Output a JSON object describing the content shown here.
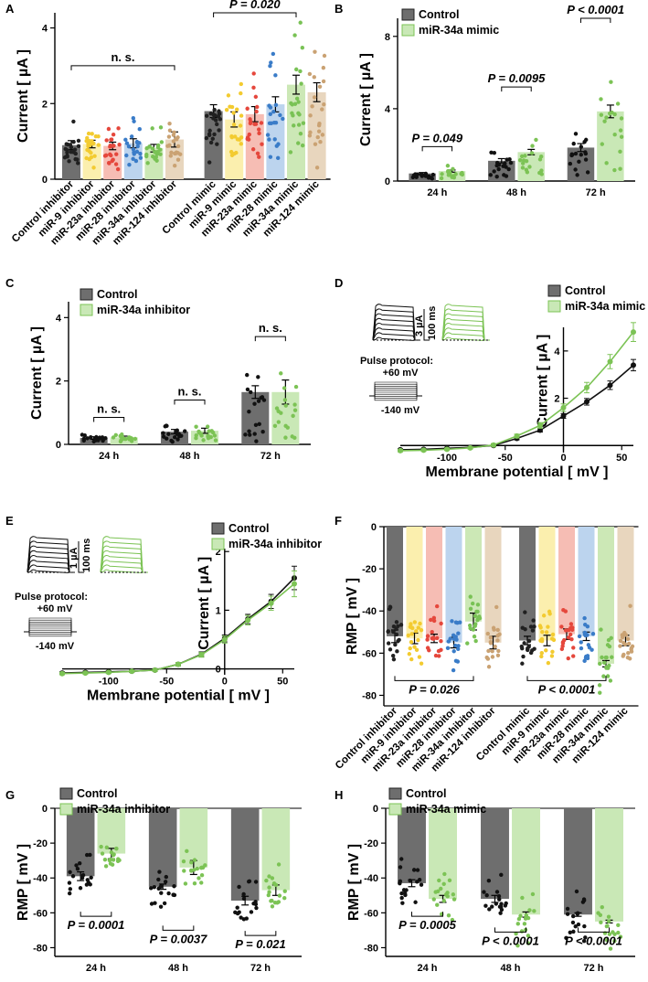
{
  "colors": {
    "control": "#444444",
    "control_bar": "#6e6e6e",
    "green": "#7cc355",
    "green_bar": "#c9e8b6",
    "inhibitor_palette": [
      "#202020",
      "#f3cb30",
      "#e5473c",
      "#3a7cc8",
      "#79c255",
      "#caa273"
    ],
    "inhibitor_bar_palette": [
      "#6f6f6f",
      "#fbefae",
      "#f6bdb4",
      "#bcd4ee",
      "#cce8b6",
      "#e8d6be"
    ]
  },
  "chart_data": [
    {
      "panel": "A",
      "type": "bar",
      "ylabel": "Current [ µA ]",
      "ylim": [
        0,
        4.4
      ],
      "yticks": [
        0,
        2,
        4
      ],
      "categories": [
        "Control inhibitor",
        "miR-9 inhibitor",
        "miR-23a inhibitor",
        "miR-28 inhibitor",
        "miR-34a inhibitor",
        "miR-124 inhibitor",
        "Control mimic",
        "miR-9 mimic",
        "miR-23a mimic",
        "miR-28 mimic",
        "miR-34a mimic",
        "miR-124 mimic"
      ],
      "values": [
        0.9,
        0.93,
        0.88,
        0.95,
        0.82,
        1.05,
        1.8,
        1.58,
        1.72,
        1.98,
        2.5,
        2.3
      ],
      "errors": [
        0.12,
        0.1,
        0.1,
        0.12,
        0.1,
        0.2,
        0.17,
        0.2,
        0.2,
        0.2,
        0.25,
        0.25
      ],
      "annotations": [
        {
          "text": "n. s.",
          "from": 0,
          "to": 5,
          "y": 3.0
        },
        {
          "text": "P = 0.020",
          "from": 6,
          "to": 10,
          "y": 4.4
        }
      ]
    },
    {
      "panel": "B",
      "type": "bar",
      "ylabel": "Current [ µA ]",
      "ylim": [
        0,
        9
      ],
      "yticks": [
        0,
        4,
        8
      ],
      "categories": [
        "24 h",
        "48 h",
        "72 h"
      ],
      "series": [
        {
          "name": "Control",
          "values": [
            0.42,
            1.12,
            1.85
          ],
          "errors": [
            0.05,
            0.12,
            0.22
          ]
        },
        {
          "name": "miR-34a mimic",
          "values": [
            0.55,
            1.6,
            3.85
          ],
          "errors": [
            0.06,
            0.15,
            0.35
          ]
        }
      ],
      "annotations": [
        "P = 0.049",
        "P = 0.0095",
        "P < 0.0001"
      ],
      "annotation_y": [
        1.9,
        5.2,
        9.0
      ]
    },
    {
      "panel": "C",
      "type": "bar",
      "ylabel": "Current [ µA ]",
      "ylim": [
        0,
        4.5
      ],
      "yticks": [
        0,
        2,
        4
      ],
      "categories": [
        "24 h",
        "48 h",
        "72 h"
      ],
      "series": [
        {
          "name": "Control",
          "values": [
            0.2,
            0.4,
            1.65
          ],
          "errors": [
            0.04,
            0.07,
            0.2
          ]
        },
        {
          "name": "miR-34a inhibitor",
          "values": [
            0.22,
            0.43,
            1.65
          ],
          "errors": [
            0.04,
            0.08,
            0.38
          ]
        }
      ],
      "annotations": [
        "n. s.",
        "n. s.",
        "n. s."
      ],
      "annotation_y": [
        0.85,
        1.4,
        3.4
      ]
    },
    {
      "panel": "D",
      "type": "line",
      "xlabel": "Membrane potential [ mV ]",
      "ylabel": "Current [ µA ]",
      "xlim": [
        -140,
        60
      ],
      "ylim": [
        -0.3,
        5
      ],
      "xticks": [
        -100,
        -50,
        0,
        50
      ],
      "yticks": [
        2,
        4
      ],
      "series": [
        {
          "name": "Control",
          "x": [
            -140,
            -120,
            -100,
            -80,
            -60,
            -40,
            -20,
            0,
            20,
            40,
            60
          ],
          "y": [
            -0.18,
            -0.16,
            -0.12,
            -0.08,
            0.0,
            0.3,
            0.65,
            1.25,
            1.85,
            2.55,
            3.4
          ],
          "errors": [
            0.04,
            0.04,
            0.04,
            0.04,
            0.05,
            0.06,
            0.08,
            0.1,
            0.14,
            0.18,
            0.24
          ]
        },
        {
          "name": "miR-34a mimic",
          "x": [
            -140,
            -120,
            -100,
            -80,
            -60,
            -40,
            -20,
            0,
            20,
            40,
            60
          ],
          "y": [
            -0.22,
            -0.2,
            -0.16,
            -0.1,
            0.02,
            0.4,
            0.85,
            1.6,
            2.45,
            3.55,
            4.8
          ],
          "errors": [
            0.05,
            0.05,
            0.05,
            0.05,
            0.06,
            0.08,
            0.12,
            0.16,
            0.22,
            0.3,
            0.4
          ]
        }
      ],
      "inset": {
        "scale_current": "3 µA",
        "scale_time": "100 ms",
        "protocol_title": "Pulse protocol:",
        "v_max": "+60 mV",
        "v_min": "-140 mV"
      }
    },
    {
      "panel": "E",
      "type": "line",
      "xlabel": "Membrane potential [ mV ]",
      "ylabel": "Current [ µA ]",
      "xlim": [
        -140,
        60
      ],
      "ylim": [
        -0.1,
        2.05
      ],
      "xticks": [
        -100,
        -50,
        0,
        50
      ],
      "yticks": [
        0,
        1,
        2
      ],
      "series": [
        {
          "name": "Control",
          "x": [
            -140,
            -120,
            -100,
            -80,
            -60,
            -40,
            -20,
            0,
            20,
            40,
            60
          ],
          "y": [
            -0.07,
            -0.06,
            -0.05,
            -0.04,
            -0.02,
            0.08,
            0.25,
            0.52,
            0.85,
            1.15,
            1.55
          ],
          "errors": [
            0.02,
            0.02,
            0.02,
            0.02,
            0.02,
            0.03,
            0.04,
            0.06,
            0.08,
            0.12,
            0.2
          ]
        },
        {
          "name": "miR-34a inhibitor",
          "x": [
            -140,
            -120,
            -100,
            -80,
            -60,
            -40,
            -20,
            0,
            20,
            40,
            60
          ],
          "y": [
            -0.08,
            -0.07,
            -0.06,
            -0.04,
            -0.02,
            0.08,
            0.24,
            0.5,
            0.83,
            1.12,
            1.45
          ],
          "errors": [
            0.02,
            0.02,
            0.02,
            0.02,
            0.02,
            0.03,
            0.04,
            0.06,
            0.08,
            0.12,
            0.22
          ]
        }
      ],
      "inset": {
        "scale_current": "1 µA",
        "scale_time": "100 ms",
        "protocol_title": "Pulse protocol:",
        "v_max": "+60 mV",
        "v_min": "-140 mV"
      }
    },
    {
      "panel": "F",
      "type": "bar",
      "ylabel": "RMP [ mV ]",
      "ylim": [
        -85,
        0
      ],
      "yticks": [
        0,
        -20,
        -40,
        -60,
        -80
      ],
      "categories": [
        "Control inhibitor",
        "miR-9 inhibitor",
        "miR-23a inhibitor",
        "miR-28 inhibitor",
        "miR-34a inhibitor",
        "miR-124 inhibitor",
        "Control mimic",
        "miR-9 mimic",
        "miR-23a mimic",
        "miR-28 mimic",
        "miR-34a mimic",
        "miR-124 mimic"
      ],
      "values": [
        -52,
        -53,
        -53,
        -55,
        -45,
        -55,
        -54,
        -54,
        -51,
        -52,
        -65,
        -54
      ],
      "errors": [
        3,
        2.5,
        2,
        2.5,
        4,
        3,
        2,
        2.5,
        2.5,
        2,
        1.5,
        2.5
      ],
      "annotations": [
        {
          "text": "P = 0.026",
          "from": 0,
          "to": 4,
          "y": -73
        },
        {
          "text": "P < 0.0001",
          "from": 6,
          "to": 10,
          "y": -73
        }
      ]
    },
    {
      "panel": "G",
      "type": "bar",
      "ylabel": "RMP [ mV ]",
      "ylim": [
        -85,
        0
      ],
      "yticks": [
        0,
        -20,
        -40,
        -60,
        -80
      ],
      "categories": [
        "24 h",
        "48 h",
        "72 h"
      ],
      "series": [
        {
          "name": "Control",
          "values": [
            -39,
            -45,
            -53
          ],
          "errors": [
            2.5,
            1.5,
            2.5
          ]
        },
        {
          "name": "miR-34a inhibitor",
          "values": [
            -26,
            -34,
            -47
          ],
          "errors": [
            3,
            4,
            3
          ]
        }
      ],
      "annotations": [
        "P = 0.0001",
        "P = 0.0037",
        "P = 0.021"
      ],
      "annotation_y": [
        -62,
        -70,
        -73
      ]
    },
    {
      "panel": "H",
      "type": "bar",
      "ylabel": "RMP [ mV ]",
      "ylim": [
        -85,
        0
      ],
      "yticks": [
        0,
        -20,
        -40,
        -60,
        -80
      ],
      "categories": [
        "24 h",
        "48 h",
        "72 h"
      ],
      "series": [
        {
          "name": "Control",
          "values": [
            -43,
            -52,
            -61
          ],
          "errors": [
            2,
            2,
            1
          ]
        },
        {
          "name": "miR-34a mimic",
          "values": [
            -52,
            -61,
            -65
          ],
          "errors": [
            2,
            1.5,
            0.8
          ]
        }
      ],
      "annotations": [
        "P = 0.0005",
        "P < 0.0001",
        "P < 0.0001"
      ],
      "annotation_y": [
        -62,
        -71,
        -71
      ]
    }
  ]
}
